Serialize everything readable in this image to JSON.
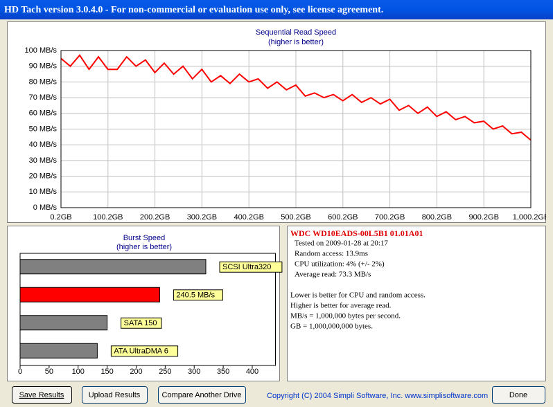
{
  "window": {
    "title": "HD Tach version 3.0.4.0  - For non-commercial or evaluation use only, see license agreement."
  },
  "chart_data": [
    {
      "type": "line",
      "title": "Sequential Read Speed",
      "subtitle": "(higher is better)",
      "color": "#ff0000",
      "grid": true,
      "x": [
        0.2,
        20,
        40,
        60,
        80,
        100,
        120,
        140,
        160,
        180,
        200,
        220,
        240,
        260,
        280,
        300,
        320,
        340,
        360,
        380,
        400,
        420,
        440,
        460,
        480,
        500,
        520,
        540,
        560,
        580,
        600,
        620,
        640,
        660,
        680,
        700,
        720,
        740,
        760,
        780,
        800,
        820,
        840,
        860,
        880,
        900,
        920,
        940,
        960,
        980,
        1000
      ],
      "values": [
        95,
        90,
        97,
        88,
        96,
        88,
        88,
        96,
        90,
        94,
        86,
        92,
        85,
        90,
        82,
        88,
        80,
        84,
        79,
        85,
        80,
        82,
        76,
        80,
        75,
        78,
        71,
        73,
        70,
        72,
        68,
        72,
        67,
        70,
        66,
        69,
        62,
        65,
        60,
        64,
        58,
        61,
        56,
        58,
        54,
        55,
        50,
        52,
        47,
        48,
        43
      ],
      "xlim": [
        0.2,
        1000.2
      ],
      "xticks": [
        {
          "value": 0.2,
          "label": "0.2GB"
        },
        {
          "value": 100.2,
          "label": "100.2GB"
        },
        {
          "value": 200.2,
          "label": "200.2GB"
        },
        {
          "value": 300.2,
          "label": "300.2GB"
        },
        {
          "value": 400.2,
          "label": "400.2GB"
        },
        {
          "value": 500.2,
          "label": "500.2GB"
        },
        {
          "value": 600.2,
          "label": "600.2GB"
        },
        {
          "value": 700.2,
          "label": "700.2GB"
        },
        {
          "value": 800.2,
          "label": "800.2GB"
        },
        {
          "value": 900.2,
          "label": "900.2GB"
        },
        {
          "value": 1000.2,
          "label": "1,000.2GB"
        }
      ],
      "ylim": [
        0,
        100
      ],
      "yticks": [
        {
          "value": 0,
          "label": "0 MB/s"
        },
        {
          "value": 10,
          "label": "10 MB/s"
        },
        {
          "value": 20,
          "label": "20 MB/s"
        },
        {
          "value": 30,
          "label": "30 MB/s"
        },
        {
          "value": 40,
          "label": "40 MB/s"
        },
        {
          "value": 50,
          "label": "50 MB/s"
        },
        {
          "value": 60,
          "label": "60 MB/s"
        },
        {
          "value": 70,
          "label": "70 MB/s"
        },
        {
          "value": 80,
          "label": "80 MB/s"
        },
        {
          "value": 90,
          "label": "90 MB/s"
        },
        {
          "value": 100,
          "label": "100 MB/s"
        }
      ]
    },
    {
      "type": "bar",
      "orientation": "horizontal",
      "title": "Burst Speed",
      "subtitle": "(higher is better)",
      "categories": [
        "SCSI Ultra320",
        null,
        "SATA 150",
        "ATA UltraDMA 6"
      ],
      "values": [
        320,
        240.5,
        150,
        133
      ],
      "value_labels": [
        null,
        "240.5 MB/s",
        null,
        null
      ],
      "colors": [
        "#808080",
        "#ff0000",
        "#808080",
        "#808080"
      ],
      "xlim": [
        0,
        440
      ],
      "xticks": [
        0,
        50,
        100,
        150,
        200,
        250,
        300,
        350,
        400
      ]
    }
  ],
  "info": {
    "drive": "WDC  WD10EADS-00L5B1 01.01A01",
    "lines": [
      "Tested on 2009-01-28 at 20:17",
      "Random access: 13.9ms",
      "CPU utilization: 4% (+/- 2%)",
      "Average read: 73.3 MB/s"
    ],
    "notes": [
      "Lower is better for CPU and random access.",
      "Higher is better for average read.",
      "MB/s = 1,000,000 bytes per second.",
      "GB = 1,000,000,000 bytes."
    ]
  },
  "buttons": [
    "Save Results",
    "Upload Results",
    "Compare Another Drive",
    "Done"
  ],
  "copyright": "Copyright (C) 2004 Simpli Software, Inc. www.simplisoftware.com"
}
